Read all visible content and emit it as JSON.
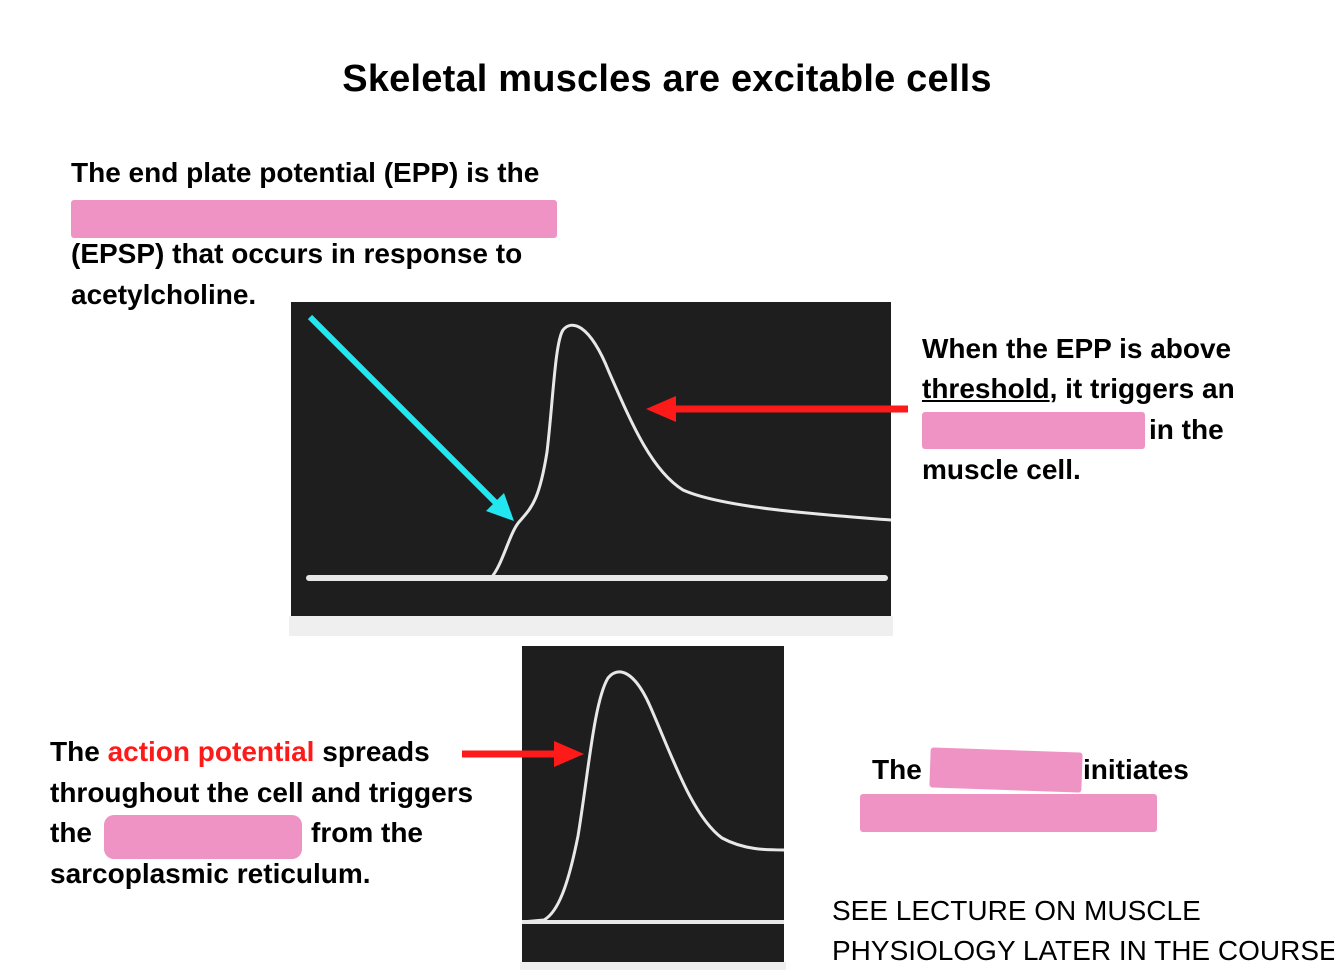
{
  "slide": {
    "title": "Skeletal muscles are excitable cells"
  },
  "epp_text": {
    "line1": "The end plate potential (EPP) is the",
    "line3": "(EPSP) that occurs in response to",
    "line4": "acetylcholine."
  },
  "threshold_text": {
    "line1": "When the EPP is above",
    "threshold_word": "threshold",
    "line2_rest": ", it triggers an",
    "line3_rest": "in the",
    "line4": "muscle cell."
  },
  "ap_text": {
    "the": "The",
    "action_potential": "action potential",
    "line1_rest": "spreads",
    "line2": "throughout the cell and triggers",
    "line3_start": "the",
    "line3_end": "from the",
    "line4": "sarcoplasmic reticulum."
  },
  "initiates_text": {
    "the": "The",
    "initiates": "initiates"
  },
  "footer_note": {
    "line1": "SEE LECTURE ON MUSCLE",
    "line2": "PHYSIOLOGY LATER IN THE COURSE"
  },
  "colors": {
    "highlight": "#ee93c4",
    "red_accent": "#ff1a1a",
    "cyan_arrow": "#22e6f0",
    "scope_background": "#1e1e1e",
    "trace": "#e8e8e8"
  }
}
